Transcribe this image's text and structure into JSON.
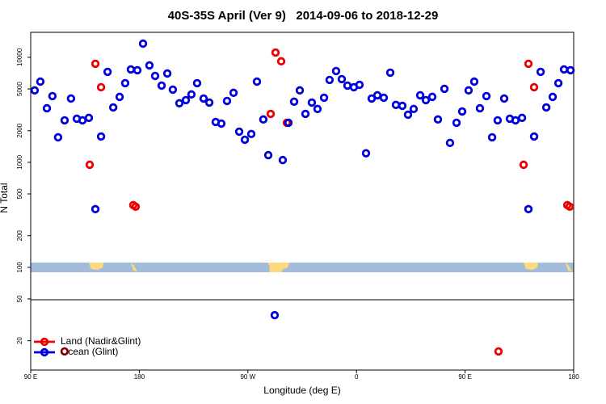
{
  "chart_data": {
    "type": "scatter",
    "title": "40S-35S April (Ver 9)   2014-09-06 to 2018-12-29",
    "xlabel": "Longitude (deg E)",
    "ylabel": "N Total",
    "xlim": [
      90,
      540
    ],
    "xticks": [
      {
        "value": 90,
        "label": "90 E"
      },
      {
        "value": 180,
        "label": "180"
      },
      {
        "value": 270,
        "label": "90 W"
      },
      {
        "value": 360,
        "label": "0"
      },
      {
        "value": 450,
        "label": "90 E"
      },
      {
        "value": 540,
        "label": "180"
      }
    ],
    "ylim": [
      10.5,
      17300
    ],
    "log_y": true,
    "yticks": [
      20,
      50,
      100,
      200,
      500,
      1000,
      2000,
      5000,
      10000
    ],
    "legend": "bottomleft",
    "series": [
      {
        "name": "Land (Nadir&Glint)",
        "color": "#ee0000",
        "x": [
          138.9,
          143.6,
          148.3,
          175.0,
          177.0,
          288.9,
          292.9,
          297.6,
          302.3,
          118.1,
          477.7,
          498.5,
          502.5,
          507.2,
          534.7,
          536.7
        ],
        "values": [
          948,
          8680,
          5190,
          391,
          378,
          2890,
          11100,
          9160,
          2380,
          15.8,
          15.8,
          948,
          8680,
          5190,
          391,
          378
        ]
      },
      {
        "name": "Ocean (Glint)",
        "color": "#0000dd",
        "x": [
          93.3,
          98.0,
          103.4,
          108.0,
          112.7,
          118.1,
          123.4,
          128.2,
          132.9,
          138.2,
          143.6,
          148.3,
          153.7,
          158.4,
          163.7,
          168.3,
          173.0,
          178.4,
          183.1,
          188.4,
          193.1,
          198.5,
          203.2,
          207.8,
          213.2,
          218.6,
          223.2,
          227.9,
          233.3,
          238.0,
          243.3,
          248.0,
          252.7,
          258.1,
          262.8,
          267.5,
          272.8,
          277.5,
          282.8,
          286.9,
          292.2,
          298.9,
          303.6,
          308.3,
          313.0,
          317.7,
          323.0,
          327.7,
          333.1,
          337.7,
          343.1,
          347.8,
          352.5,
          357.8,
          362.5,
          367.9,
          372.6,
          377.3,
          382.6,
          388.0,
          392.7,
          398.0,
          402.7,
          407.4,
          412.8,
          417.5,
          422.8,
          427.5,
          432.9,
          437.5,
          442.9,
          447.6,
          452.9,
          457.6,
          462.3,
          467.7,
          472.4,
          477.0,
          482.4,
          487.1,
          491.8,
          497.2,
          502.5,
          507.2,
          512.6,
          517.3,
          522.6,
          527.3,
          532.0,
          537.4
        ],
        "values": [
          4840,
          5870,
          3270,
          4270,
          1730,
          2510,
          4050,
          2600,
          2510,
          2650,
          358,
          1760,
          7270,
          3330,
          4200,
          5670,
          7670,
          7530,
          13500,
          8380,
          6650,
          5380,
          7020,
          4920,
          3650,
          3910,
          4430,
          5670,
          4050,
          3710,
          2420,
          2340,
          3840,
          4590,
          1960,
          1640,
          1860,
          5870,
          2560,
          1170,
          35,
          1050,
          2380,
          3780,
          4840,
          2890,
          3710,
          3220,
          4120,
          6090,
          7400,
          6200,
          5380,
          5190,
          5470,
          1220,
          4050,
          4350,
          4120,
          7140,
          3520,
          3450,
          2840,
          3220,
          4350,
          3910,
          4200,
          2560,
          5010,
          1530,
          2380,
          3050,
          4840,
          5870,
          3270,
          4270,
          1730,
          2510,
          4050,
          2600,
          2510,
          2650,
          358,
          1760,
          7270,
          3330,
          4200,
          5670,
          7670,
          7530
        ]
      }
    ]
  }
}
